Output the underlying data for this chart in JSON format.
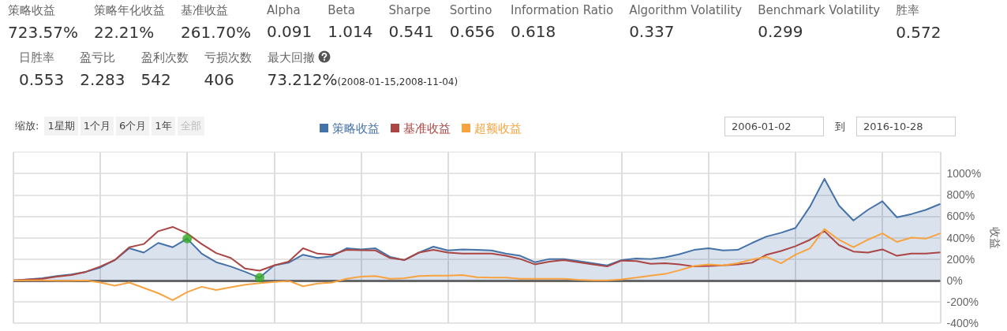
{
  "chart_data": {
    "type": "line",
    "ylabel": "收益",
    "legend": "top",
    "grid": true,
    "tick_labels": "y",
    "marker": "none",
    "categories": [
      null,
      null,
      null,
      null,
      null,
      null,
      null,
      null,
      null,
      null,
      null,
      null,
      null,
      null,
      null,
      null,
      null,
      null,
      null,
      null,
      null,
      null,
      null,
      null,
      null,
      null,
      null,
      null,
      null,
      null,
      null,
      null,
      null,
      null,
      null,
      null,
      null,
      null,
      null,
      null,
      null,
      null,
      null,
      null,
      null,
      null,
      null,
      null,
      null,
      null,
      null,
      null,
      null,
      null,
      null,
      null,
      null,
      null,
      null,
      null,
      null,
      null,
      null,
      null,
      null
    ],
    "ylim": [
      -400,
      1200
    ],
    "yticks": [
      {
        "value": -400,
        "label": "-400%"
      },
      {
        "value": -200,
        "label": "-200%"
      },
      {
        "value": 0,
        "label": "0%"
      },
      {
        "value": 200,
        "label": "200%"
      },
      {
        "value": 400,
        "label": "400%"
      },
      {
        "value": 600,
        "label": "600%"
      },
      {
        "value": 800,
        "label": "800%"
      },
      {
        "value": 1000,
        "label": "1000%"
      }
    ],
    "ref_lines": [
      {
        "axis": "y",
        "value": 0,
        "color": "#666666"
      }
    ],
    "series": [
      {
        "name": "策略收益",
        "type": "area",
        "color": "#4572a7",
        "values": [
          0,
          10,
          20,
          40,
          55,
          80,
          120,
          190,
          300,
          260,
          350,
          310,
          390,
          250,
          170,
          130,
          80,
          25,
          140,
          165,
          240,
          210,
          225,
          300,
          290,
          300,
          220,
          190,
          260,
          315,
          280,
          290,
          285,
          280,
          250,
          230,
          170,
          200,
          200,
          180,
          160,
          140,
          190,
          205,
          200,
          215,
          245,
          285,
          300,
          280,
          285,
          350,
          410,
          445,
          490,
          690,
          950,
          700,
          560,
          660,
          740,
          590,
          620,
          660,
          715
        ]
      },
      {
        "name": "基准收益",
        "type": "line",
        "color": "#aa4643",
        "values": [
          0,
          8,
          15,
          35,
          50,
          80,
          130,
          190,
          310,
          340,
          460,
          500,
          440,
          340,
          255,
          210,
          110,
          90,
          140,
          175,
          300,
          250,
          240,
          285,
          282,
          280,
          210,
          190,
          260,
          285,
          260,
          250,
          250,
          250,
          230,
          200,
          150,
          175,
          190,
          170,
          150,
          130,
          185,
          180,
          155,
          160,
          150,
          130,
          135,
          140,
          150,
          165,
          240,
          275,
          320,
          380,
          460,
          330,
          270,
          260,
          290,
          230,
          250,
          250,
          262
        ]
      },
      {
        "name": "超额收益",
        "type": "line",
        "color": "#f8a33f",
        "values": [
          0,
          0,
          0,
          -3,
          -3,
          0,
          -20,
          -50,
          -20,
          -70,
          -120,
          -185,
          -110,
          -60,
          -90,
          -65,
          -40,
          -25,
          -15,
          -5,
          -55,
          -30,
          -20,
          15,
          35,
          40,
          15,
          20,
          40,
          45,
          45,
          50,
          30,
          25,
          25,
          15,
          15,
          15,
          15,
          5,
          0,
          0,
          10,
          25,
          45,
          60,
          95,
          135,
          150,
          140,
          160,
          195,
          220,
          160,
          240,
          300,
          480,
          380,
          310,
          380,
          440,
          360,
          400,
          390,
          440
        ]
      },
      {
        "type": "scatter",
        "marker": "circle",
        "color": "#33aa22",
        "values": [
          null,
          null,
          null,
          null,
          null,
          null,
          null,
          null,
          null,
          null,
          null,
          null,
          390,
          null,
          null,
          null,
          null,
          25,
          null,
          null,
          null,
          null,
          null,
          null,
          null,
          null,
          null,
          null,
          null,
          null,
          null,
          null,
          null,
          null,
          null,
          null,
          null,
          null,
          null,
          null,
          null,
          null,
          null,
          null,
          null,
          null,
          null,
          null,
          null,
          null,
          null,
          null,
          null,
          null,
          null,
          null,
          null,
          null,
          null,
          null,
          null,
          null,
          null,
          null,
          null
        ]
      }
    ],
    "annotations": [
      "策略收益\n723.57%",
      "策略年化收益\n22.21%",
      "基准收益\n261.70%",
      "Alpha\n0.091",
      "Beta\n1.014",
      "Sharpe\n0.541",
      "Sortino\n0.656",
      "Information Ratio\n0.618",
      "Algorithm Volatility\n0.337",
      "Benchmark Volatility\n0.299",
      "胜率\n0.572",
      "日胜率\n0.553",
      "盈亏比\n2.283",
      "盈利次数\n542",
      "亏损次数\n406",
      "最大回撤\n73.212%(2008-01-15,2008-11-04)",
      "缩放:",
      "1星期",
      "1个月",
      "6个月",
      "1年",
      "全部",
      "2006-01-02",
      "到",
      "2016-10-28"
    ]
  }
}
